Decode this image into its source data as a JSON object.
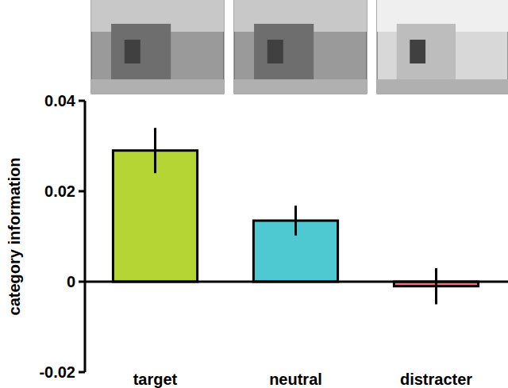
{
  "chart_data": {
    "type": "bar",
    "y_label": "category information",
    "categories": [
      "target",
      "neutral",
      "distracter"
    ],
    "values": [
      0.029,
      0.0135,
      -0.001
    ],
    "errors": [
      0.005,
      0.0033,
      0.004
    ],
    "colors": [
      "#b5d534",
      "#4fc9d1",
      "#e8737f"
    ],
    "ylim": [
      -0.02,
      0.04
    ],
    "yticks": [
      -0.02,
      0,
      0.02,
      0.04
    ],
    "grid": false
  }
}
